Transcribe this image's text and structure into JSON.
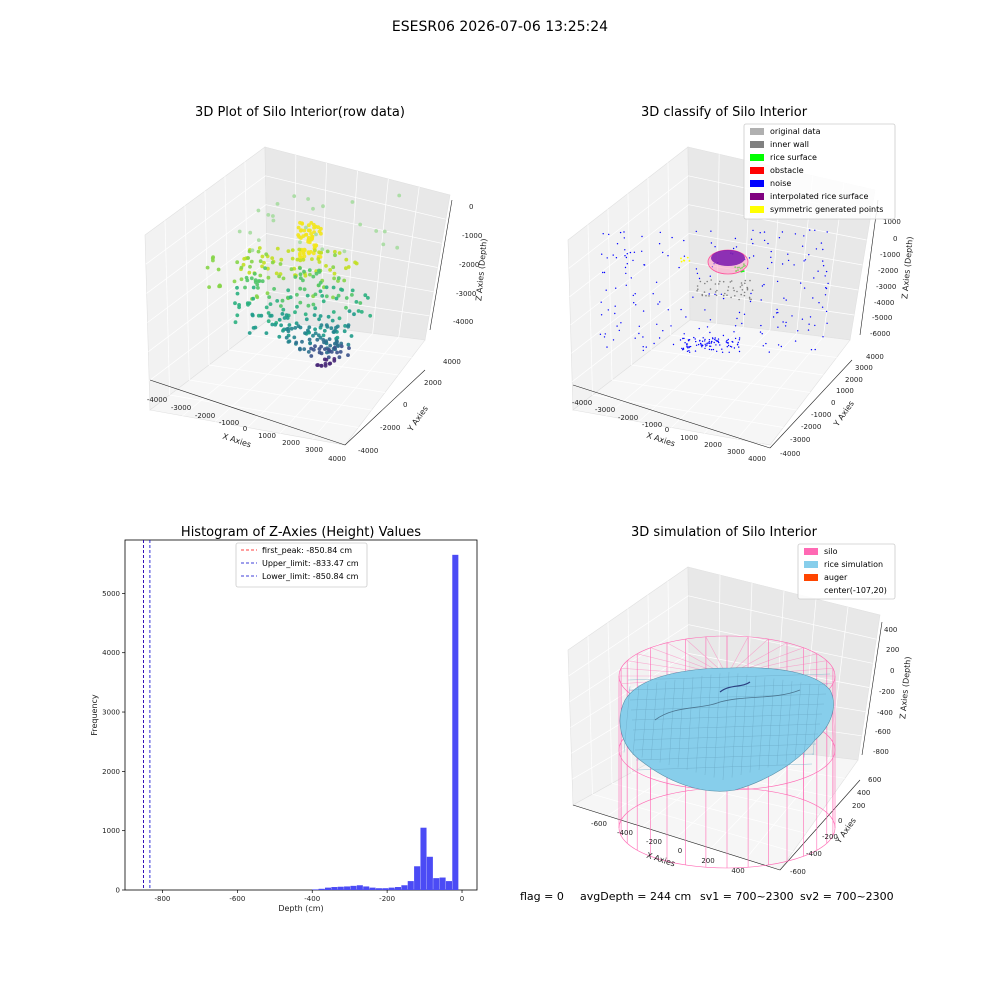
{
  "suptitle": "ESESR06 2026-07-06 13:25:24",
  "panels": {
    "raw": {
      "title": "3D Plot of Silo Interior(row data)",
      "xlabel": "X Axies",
      "ylabel": "Y Axies",
      "zlabel": "Z Axies (Depth)",
      "xticks": [
        "-4000",
        "-3000",
        "-2000",
        "-1000",
        "0",
        "1000",
        "2000",
        "3000",
        "4000"
      ],
      "yticks": [
        "-4000",
        "-2000",
        "0",
        "2000",
        "4000"
      ],
      "zticks": [
        "0",
        "-1000",
        "-2000",
        "-3000",
        "-4000"
      ]
    },
    "classify": {
      "title": "3D classify of Silo Interior",
      "xlabel": "X Axies",
      "ylabel": "Y Axies",
      "zlabel": "Z Axies (Depth)",
      "xticks": [
        "-4000",
        "-3000",
        "-2000",
        "-1000",
        "0",
        "1000",
        "2000",
        "3000",
        "4000"
      ],
      "yticks": [
        "-4000",
        "-3000",
        "-2000",
        "-1000",
        "0",
        "1000",
        "2000",
        "3000",
        "4000"
      ],
      "zticks": [
        "1000",
        "0",
        "-1000",
        "-2000",
        "-3000",
        "-4000",
        "-5000",
        "-6000"
      ],
      "legend": [
        {
          "label": "original data",
          "color": "#b0b0b0"
        },
        {
          "label": "inner wall",
          "color": "#808080"
        },
        {
          "label": "rice surface",
          "color": "#00ff00"
        },
        {
          "label": "obstacle",
          "color": "#ff0000"
        },
        {
          "label": "noise",
          "color": "#0000ff"
        },
        {
          "label": "interpolated rice surface",
          "color": "#800080"
        },
        {
          "label": "symmetric generated points",
          "color": "#ffff00"
        }
      ]
    },
    "simulation": {
      "title": "3D simulation of Silo Interior",
      "xlabel": "X Axies",
      "ylabel": "Y Axies",
      "zlabel": "Z Axies (Depth)",
      "xticks": [
        "-600",
        "-400",
        "-200",
        "0",
        "200",
        "400"
      ],
      "yticks": [
        "-600",
        "-400",
        "-200",
        "0",
        "200",
        "400",
        "600"
      ],
      "zticks": [
        "400",
        "200",
        "0",
        "-200",
        "-400",
        "-600",
        "-800"
      ],
      "legend": [
        {
          "label": "silo",
          "color": "#ff69b4"
        },
        {
          "label": "rice simulation",
          "color": "#87ceeb"
        },
        {
          "label": "auger",
          "color": "#ff4500"
        },
        {
          "label": "center(-107,20)",
          "color": ""
        }
      ]
    }
  },
  "chart_data": {
    "type": "bar",
    "title": "Histogram of Z-Axies (Height) Values",
    "xlabel": "Depth (cm)",
    "ylabel": "Frequency",
    "xlim": [
      -900,
      40
    ],
    "ylim": [
      0,
      5900
    ],
    "xticks": [
      -800,
      -600,
      -400,
      -200,
      0
    ],
    "yticks": [
      0,
      1000,
      2000,
      3000,
      4000,
      5000
    ],
    "bin_width": 17,
    "bar_color": "#4b4bf5",
    "bins": [
      {
        "x": -400,
        "v": 10
      },
      {
        "x": -383,
        "v": 20
      },
      {
        "x": -366,
        "v": 40
      },
      {
        "x": -349,
        "v": 50
      },
      {
        "x": -332,
        "v": 55
      },
      {
        "x": -315,
        "v": 60
      },
      {
        "x": -298,
        "v": 70
      },
      {
        "x": -281,
        "v": 80
      },
      {
        "x": -264,
        "v": 60
      },
      {
        "x": -247,
        "v": 40
      },
      {
        "x": -230,
        "v": 30
      },
      {
        "x": -213,
        "v": 30
      },
      {
        "x": -196,
        "v": 40
      },
      {
        "x": -179,
        "v": 50
      },
      {
        "x": -162,
        "v": 80
      },
      {
        "x": -145,
        "v": 150
      },
      {
        "x": -128,
        "v": 400
      },
      {
        "x": -111,
        "v": 1050
      },
      {
        "x": -94,
        "v": 560
      },
      {
        "x": -77,
        "v": 200
      },
      {
        "x": -60,
        "v": 210
      },
      {
        "x": -43,
        "v": 150
      },
      {
        "x": -26,
        "v": 5650
      }
    ],
    "vlines": [
      {
        "label": "first_peak: -850.84 cm",
        "x": -850.84,
        "color": "#ff0000"
      },
      {
        "label": "Upper_limit: -833.47 cm",
        "x": -833.47,
        "color": "#0000cc"
      },
      {
        "label": "Lower_limit: -850.84 cm",
        "x": -850.84,
        "color": "#0000cc"
      }
    ]
  },
  "footer": {
    "flag": "flag = 0",
    "avg": "avgDepth = 244 cm",
    "sv1": "sv1 = 700~2300",
    "sv2": "sv2 = 700~2300"
  }
}
